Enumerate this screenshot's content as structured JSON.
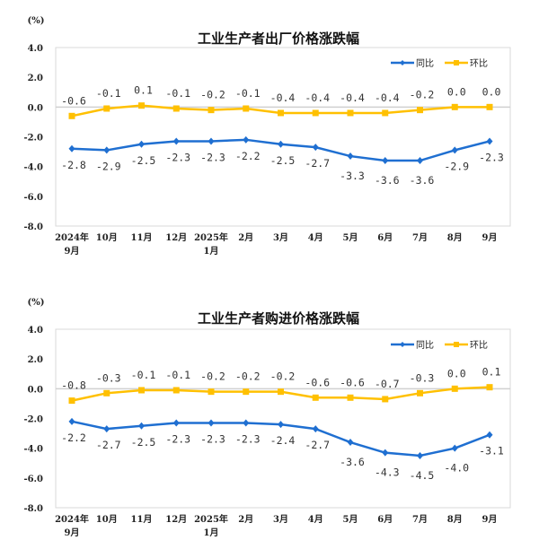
{
  "chart_data": [
    {
      "type": "line",
      "title": "工业生产者出厂价格涨跌幅",
      "ylabel": "(%)",
      "ylim": [
        -8,
        4
      ],
      "yticks": [
        "4.0",
        "2.0",
        "0.0",
        "-2.0",
        "-4.0",
        "-6.0",
        "-8.0"
      ],
      "categories": [
        [
          "2024年",
          "9月"
        ],
        [
          "10月"
        ],
        [
          "11月"
        ],
        [
          "12月"
        ],
        [
          "2025年",
          "1月"
        ],
        [
          "2月"
        ],
        [
          "3月"
        ],
        [
          "4月"
        ],
        [
          "5月"
        ],
        [
          "6月"
        ],
        [
          "7月"
        ],
        [
          "8月"
        ],
        [
          "9月"
        ]
      ],
      "legend_position": "top-right",
      "series": [
        {
          "name": "同比",
          "color": "#1F6FD1",
          "values": [
            -2.8,
            -2.9,
            -2.5,
            -2.3,
            -2.3,
            -2.2,
            -2.5,
            -2.7,
            -3.3,
            -3.6,
            -3.6,
            -2.9,
            -2.3
          ],
          "labels": [
            "-2.8",
            "-2.9",
            "-2.5",
            "-2.3",
            "-2.3",
            "-2.2",
            "-2.5",
            "-2.7",
            "-3.3",
            "-3.6",
            "-3.6",
            "-2.9",
            "-2.3"
          ]
        },
        {
          "name": "环比",
          "color": "#FFC000",
          "values": [
            -0.6,
            -0.1,
            0.1,
            -0.1,
            -0.2,
            -0.1,
            -0.4,
            -0.4,
            -0.4,
            -0.4,
            -0.2,
            0.0,
            0.0
          ],
          "labels": [
            "-0.6",
            "-0.1",
            "0.1",
            "-0.1",
            "-0.2",
            "-0.1",
            "-0.4",
            "-0.4",
            "-0.4",
            "-0.4",
            "-0.2",
            "0.0",
            "0.0"
          ]
        }
      ]
    },
    {
      "type": "line",
      "title": "工业生产者购进价格涨跌幅",
      "ylabel": "(%)",
      "ylim": [
        -8,
        4
      ],
      "yticks": [
        "4.0",
        "2.0",
        "0.0",
        "-2.0",
        "-4.0",
        "-6.0",
        "-8.0"
      ],
      "categories": [
        [
          "2024年",
          "9月"
        ],
        [
          "10月"
        ],
        [
          "11月"
        ],
        [
          "12月"
        ],
        [
          "2025年",
          "1月"
        ],
        [
          "2月"
        ],
        [
          "3月"
        ],
        [
          "4月"
        ],
        [
          "5月"
        ],
        [
          "6月"
        ],
        [
          "7月"
        ],
        [
          "8月"
        ],
        [
          "9月"
        ]
      ],
      "legend_position": "top-right",
      "series": [
        {
          "name": "同比",
          "color": "#1F6FD1",
          "values": [
            -2.2,
            -2.7,
            -2.5,
            -2.3,
            -2.3,
            -2.3,
            -2.4,
            -2.7,
            -3.6,
            -4.3,
            -4.5,
            -4.0,
            -3.1
          ],
          "labels": [
            "-2.2",
            "-2.7",
            "-2.5",
            "-2.3",
            "-2.3",
            "-2.3",
            "-2.4",
            "-2.7",
            "-3.6",
            "-4.3",
            "-4.5",
            "-4.0",
            "-3.1"
          ]
        },
        {
          "name": "环比",
          "color": "#FFC000",
          "values": [
            -0.8,
            -0.3,
            -0.1,
            -0.1,
            -0.2,
            -0.2,
            -0.2,
            -0.6,
            -0.6,
            -0.7,
            -0.3,
            0.0,
            0.1
          ],
          "labels": [
            "-0.8",
            "-0.3",
            "-0.1",
            "-0.1",
            "-0.2",
            "-0.2",
            "-0.2",
            "-0.6",
            "-0.6",
            "-0.7",
            "-0.3",
            "0.0",
            "0.1"
          ]
        }
      ]
    }
  ]
}
